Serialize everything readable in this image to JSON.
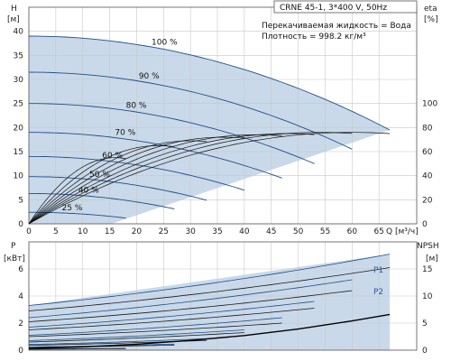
{
  "chart_data": [
    {
      "type": "line",
      "info": {
        "model": "CRNE 45-1, 3*400 V, 50Hz",
        "liquid": "Перекачиваемая жидкость = Вода",
        "density": "Плотность = 998.2 кг/м³"
      },
      "xlabel": "Q [м³/ч]",
      "ylabel_left": "H",
      "ylabel_left_unit": "[м]",
      "ylabel_right": "eta",
      "ylabel_right_unit": "[%]",
      "xlim": [
        0,
        72
      ],
      "ylim": [
        0,
        45
      ],
      "y2lim": [
        0,
        180
      ],
      "x_ticks": [
        0,
        5,
        10,
        15,
        20,
        25,
        30,
        35,
        40,
        45,
        50,
        55,
        60,
        65
      ],
      "y_ticks": [
        0,
        5,
        10,
        15,
        20,
        25,
        30,
        35,
        40
      ],
      "y2_ticks": [
        0,
        20,
        40,
        60,
        80,
        100
      ],
      "grid": true,
      "speed_curves": [
        {
          "label": "100 %",
          "q_max": 67,
          "h0": 39,
          "h_end": 19.5
        },
        {
          "label": "90 %",
          "q_max": 60,
          "h0": 31.5,
          "h_end": 15.5
        },
        {
          "label": "80 %",
          "q_max": 53,
          "h0": 25,
          "h_end": 12.5
        },
        {
          "label": "70 %",
          "q_max": 47,
          "h0": 19,
          "h_end": 9.5
        },
        {
          "label": "60 %",
          "q_max": 40,
          "h0": 14,
          "h_end": 7
        },
        {
          "label": "50 %",
          "q_max": 33,
          "h0": 9.8,
          "h_end": 4.9
        },
        {
          "label": "40 %",
          "q_max": 27,
          "h0": 6.3,
          "h_end": 3.1
        },
        {
          "label": "25 %",
          "q_max": 18,
          "h0": 2.4,
          "h_end": 1.2
        }
      ],
      "efficiency_curves": [
        {
          "q_peak": 60,
          "eta_peak": 76,
          "q_max": 67
        },
        {
          "q_peak": 54,
          "eta_peak": 76,
          "q_max": 60
        },
        {
          "q_peak": 48,
          "eta_peak": 75,
          "q_max": 53
        },
        {
          "q_peak": 42,
          "eta_peak": 74,
          "q_max": 47
        },
        {
          "q_peak": 36,
          "eta_peak": 72,
          "q_max": 40
        },
        {
          "q_peak": 30,
          "eta_peak": 69,
          "q_max": 33
        },
        {
          "q_peak": 24,
          "eta_peak": 65,
          "q_max": 27
        },
        {
          "q_peak": 16,
          "eta_peak": 55,
          "q_max": 18
        }
      ]
    },
    {
      "type": "line",
      "ylabel_left": "P",
      "ylabel_left_unit": "[кВт]",
      "ylabel_right": "NPSH",
      "ylabel_right_unit": "[м]",
      "xlim": [
        0,
        72
      ],
      "ylim": [
        0,
        8
      ],
      "y2lim": [
        0,
        20
      ],
      "y_ticks": [
        0,
        2,
        4,
        6
      ],
      "y2_ticks": [
        0,
        5,
        10,
        15
      ],
      "grid": true,
      "series_labels": [
        "P1",
        "P2"
      ],
      "power_curves": [
        {
          "q_max": 67,
          "p1_start": 3.3,
          "p1_end": 7.1,
          "p2_start": 2.9,
          "p2_end": 6.1
        },
        {
          "q_max": 60,
          "p1_start": 2.4,
          "p1_end": 5.2,
          "p2_start": 2.1,
          "p2_end": 4.4
        },
        {
          "q_max": 53,
          "p1_start": 1.7,
          "p1_end": 3.6,
          "p2_start": 1.5,
          "p2_end": 3.1
        },
        {
          "q_max": 47,
          "p1_start": 1.1,
          "p1_end": 2.4,
          "p2_start": 1.0,
          "p2_end": 2.0
        },
        {
          "q_max": 40,
          "p1_start": 0.7,
          "p1_end": 1.5,
          "p2_start": 0.6,
          "p2_end": 1.3
        },
        {
          "q_max": 33,
          "p1_start": 0.42,
          "p1_end": 0.85,
          "p2_start": 0.36,
          "p2_end": 0.72
        },
        {
          "q_max": 27,
          "p1_start": 0.23,
          "p1_end": 0.45,
          "p2_start": 0.2,
          "p2_end": 0.38
        },
        {
          "q_max": 18,
          "p1_start": 0.08,
          "p1_end": 0.14,
          "p2_start": 0.07,
          "p2_end": 0.12
        }
      ],
      "npsh_curve": {
        "x": [
          0,
          10,
          20,
          30,
          40,
          50,
          60,
          67
        ],
        "y": [
          0.3,
          0.6,
          1.1,
          1.8,
          2.7,
          3.9,
          5.4,
          6.6
        ]
      }
    }
  ]
}
